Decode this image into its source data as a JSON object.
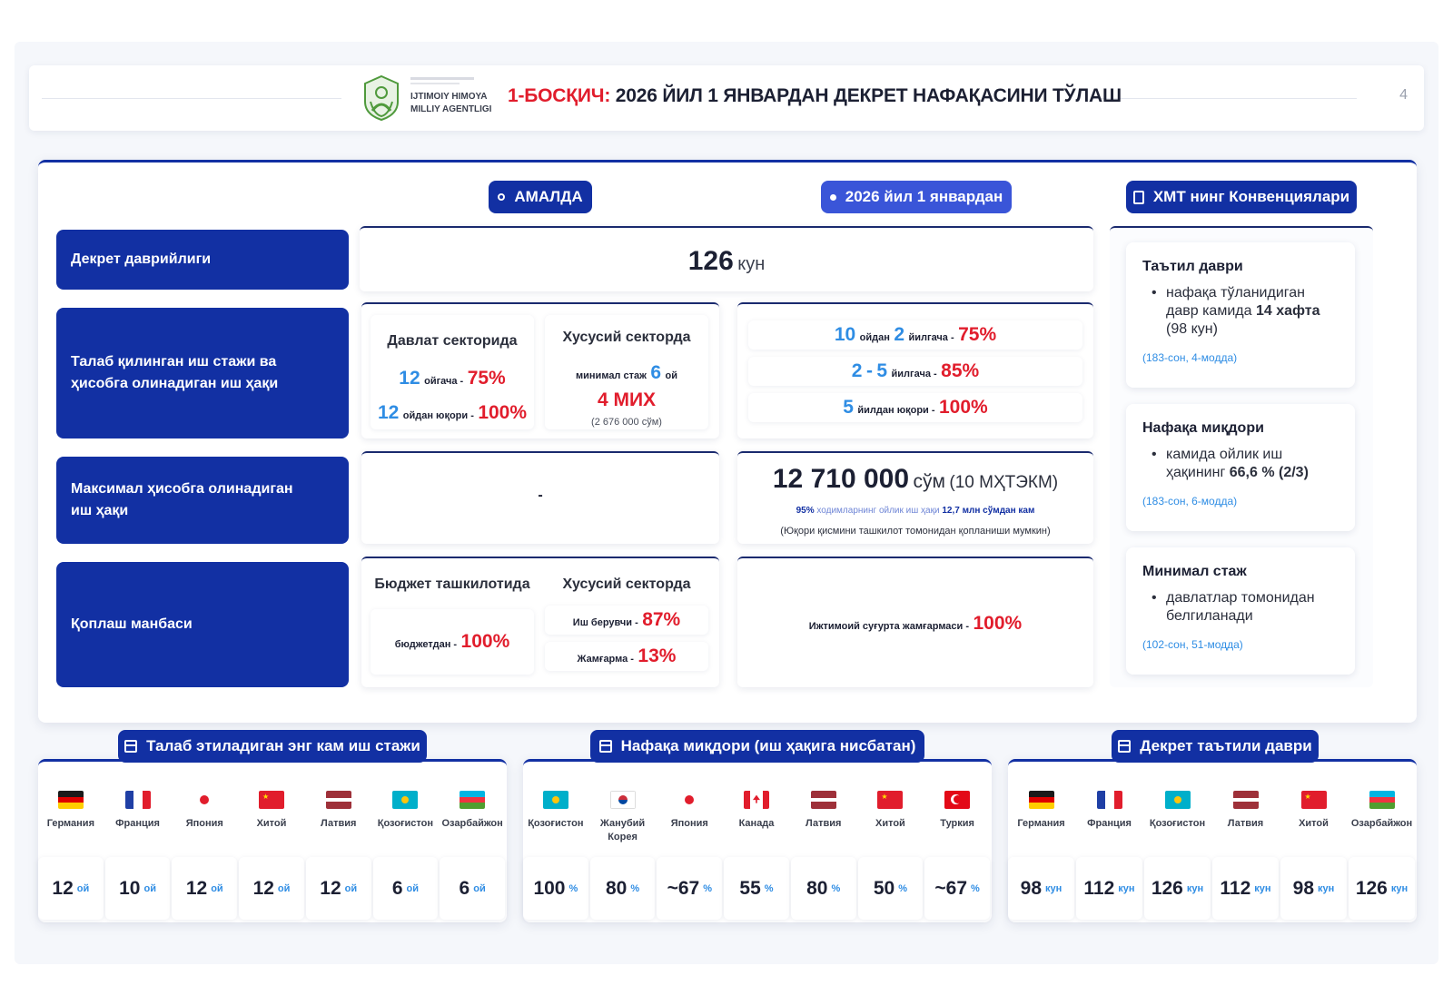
{
  "header": {
    "logo_line1": "IJTIMOIY HIMOYA",
    "logo_line2": "MILLIY AGENTLIGI",
    "title_prefix": "1-БОСҚИЧ:",
    "title_main": " 2026 ЙИЛ 1 ЯНВАРДАН ДЕКРЕТ НАФАҚАСИНИ ТЎЛАШ",
    "page_number": "4"
  },
  "columns": {
    "current": "АМАЛДА",
    "from_2026": "2026 йил 1 январдан",
    "ilo": "ХМТ нинг Конвенциялари"
  },
  "rows": {
    "duration_label": "Декрет даврийлиги",
    "experience_label": "Талаб қилинган иш стажи ва ҳисобга олинадиган иш ҳақи",
    "max_wage_label": "Максимал ҳисобга олинадиган иш ҳақи",
    "source_label": "Қоплаш манбаси"
  },
  "duration": {
    "value": "126",
    "unit": "кун"
  },
  "experience_current": {
    "public_header": "Давлат секторида",
    "public_line1": {
      "num": "12",
      "mid": "ойгача -",
      "pct": "75%"
    },
    "public_line2": {
      "num": "12",
      "mid": "ойдан юқори -",
      "pct": "100%"
    },
    "private_header": "Хусусий секторда",
    "private_line1": {
      "prefix": "минимал стаж",
      "num": "6",
      "suffix": "ой"
    },
    "private_line2": "4 МИХ",
    "private_line3": "(2 676 000 сўм)"
  },
  "experience_new": {
    "line1": {
      "a": "10",
      "b": "ойдан",
      "c": "2",
      "d": "йилгача -",
      "pct": "75%"
    },
    "line2": {
      "a": "2",
      "b": "-",
      "c": "5",
      "d": "йилгача -",
      "pct": "85%"
    },
    "line3": {
      "a": "5",
      "d": "йилдан юқори -",
      "pct": "100%"
    }
  },
  "max_wage_current": "-",
  "max_wage_new": {
    "amount": "12 710 000",
    "unit": "сўм",
    "note_paren": "(10 МҲТЭКМ)",
    "line1_a": "95%",
    "line1_b": "ходимларнинг ойлик иш ҳақи",
    "line1_c": "12,7 млн сўмдан кам",
    "line2": "(Юқори қисмини ташкилот томонидан қопланиши мумкин)"
  },
  "source_current": {
    "budget_header": "Бюджет ташкилотида",
    "budget_line": {
      "text": "бюджетдан -",
      "pct": "100%"
    },
    "private_header": "Хусусий секторда",
    "private_line1": {
      "text": "Иш берувчи -",
      "pct": "87%"
    },
    "private_line2": {
      "text": "Жамғарма -",
      "pct": "13%"
    }
  },
  "source_new": {
    "text": "Ижтимоий суғурта жамғармаси -",
    "pct": "100%"
  },
  "ilo_cards": [
    {
      "title": "Таътил даври",
      "lines": [
        "нафақа тўланидиган давр камида",
        "14 хафта",
        "(98 кун)"
      ],
      "ref": "(183-сон, 4-модда)"
    },
    {
      "title": "Нафақа миқдори",
      "lines": [
        "камида ойлик иш ҳақининг",
        "66,6 % (2/3)"
      ],
      "ref": "(183-сон, 6-модда)"
    },
    {
      "title": "Минимал стаж",
      "lines": [
        "давлатлар томонидан белгиланади"
      ],
      "ref": "(102-сон, 51-модда)"
    }
  ],
  "bottom": [
    {
      "title": "Талаб этиладиган энг кам иш стажи",
      "unit": "ой",
      "items": [
        {
          "country": "Германия",
          "flag": "de",
          "value": "12"
        },
        {
          "country": "Франция",
          "flag": "fr",
          "value": "10"
        },
        {
          "country": "Япония",
          "flag": "jp",
          "value": "12"
        },
        {
          "country": "Хитой",
          "flag": "cn",
          "value": "12"
        },
        {
          "country": "Латвия",
          "flag": "lv",
          "value": "12"
        },
        {
          "country": "Қозоғистон",
          "flag": "kz",
          "value": "6"
        },
        {
          "country": "Озарбайжон",
          "flag": "az",
          "value": "6"
        }
      ]
    },
    {
      "title": "Нафақа миқдори (иш ҳақига нисбатан)",
      "unit": "%",
      "items": [
        {
          "country": "Қозоғистон",
          "flag": "kz",
          "value": "100"
        },
        {
          "country": "Жанубий Корея",
          "flag": "kr",
          "value": "80"
        },
        {
          "country": "Япония",
          "flag": "jp",
          "value": "~67"
        },
        {
          "country": "Канада",
          "flag": "ca",
          "value": "55"
        },
        {
          "country": "Латвия",
          "flag": "lv",
          "value": "80"
        },
        {
          "country": "Хитой",
          "flag": "cn",
          "value": "50"
        },
        {
          "country": "Туркия",
          "flag": "tr",
          "value": "~67"
        }
      ]
    },
    {
      "title": "Декрет таътили даври",
      "unit": "кун",
      "items": [
        {
          "country": "Германия",
          "flag": "de",
          "value": "98"
        },
        {
          "country": "Франция",
          "flag": "fr",
          "value": "112"
        },
        {
          "country": "Қозоғистон",
          "flag": "kz",
          "value": "126"
        },
        {
          "country": "Латвия",
          "flag": "lv",
          "value": "112"
        },
        {
          "country": "Хитой",
          "flag": "cn",
          "value": "98"
        },
        {
          "country": "Озарбайжон",
          "flag": "az",
          "value": "126"
        }
      ]
    }
  ],
  "colors": {
    "navy": "#1230a3",
    "accent_blue": "#2f8de4",
    "accent_red": "#e11d2c"
  }
}
